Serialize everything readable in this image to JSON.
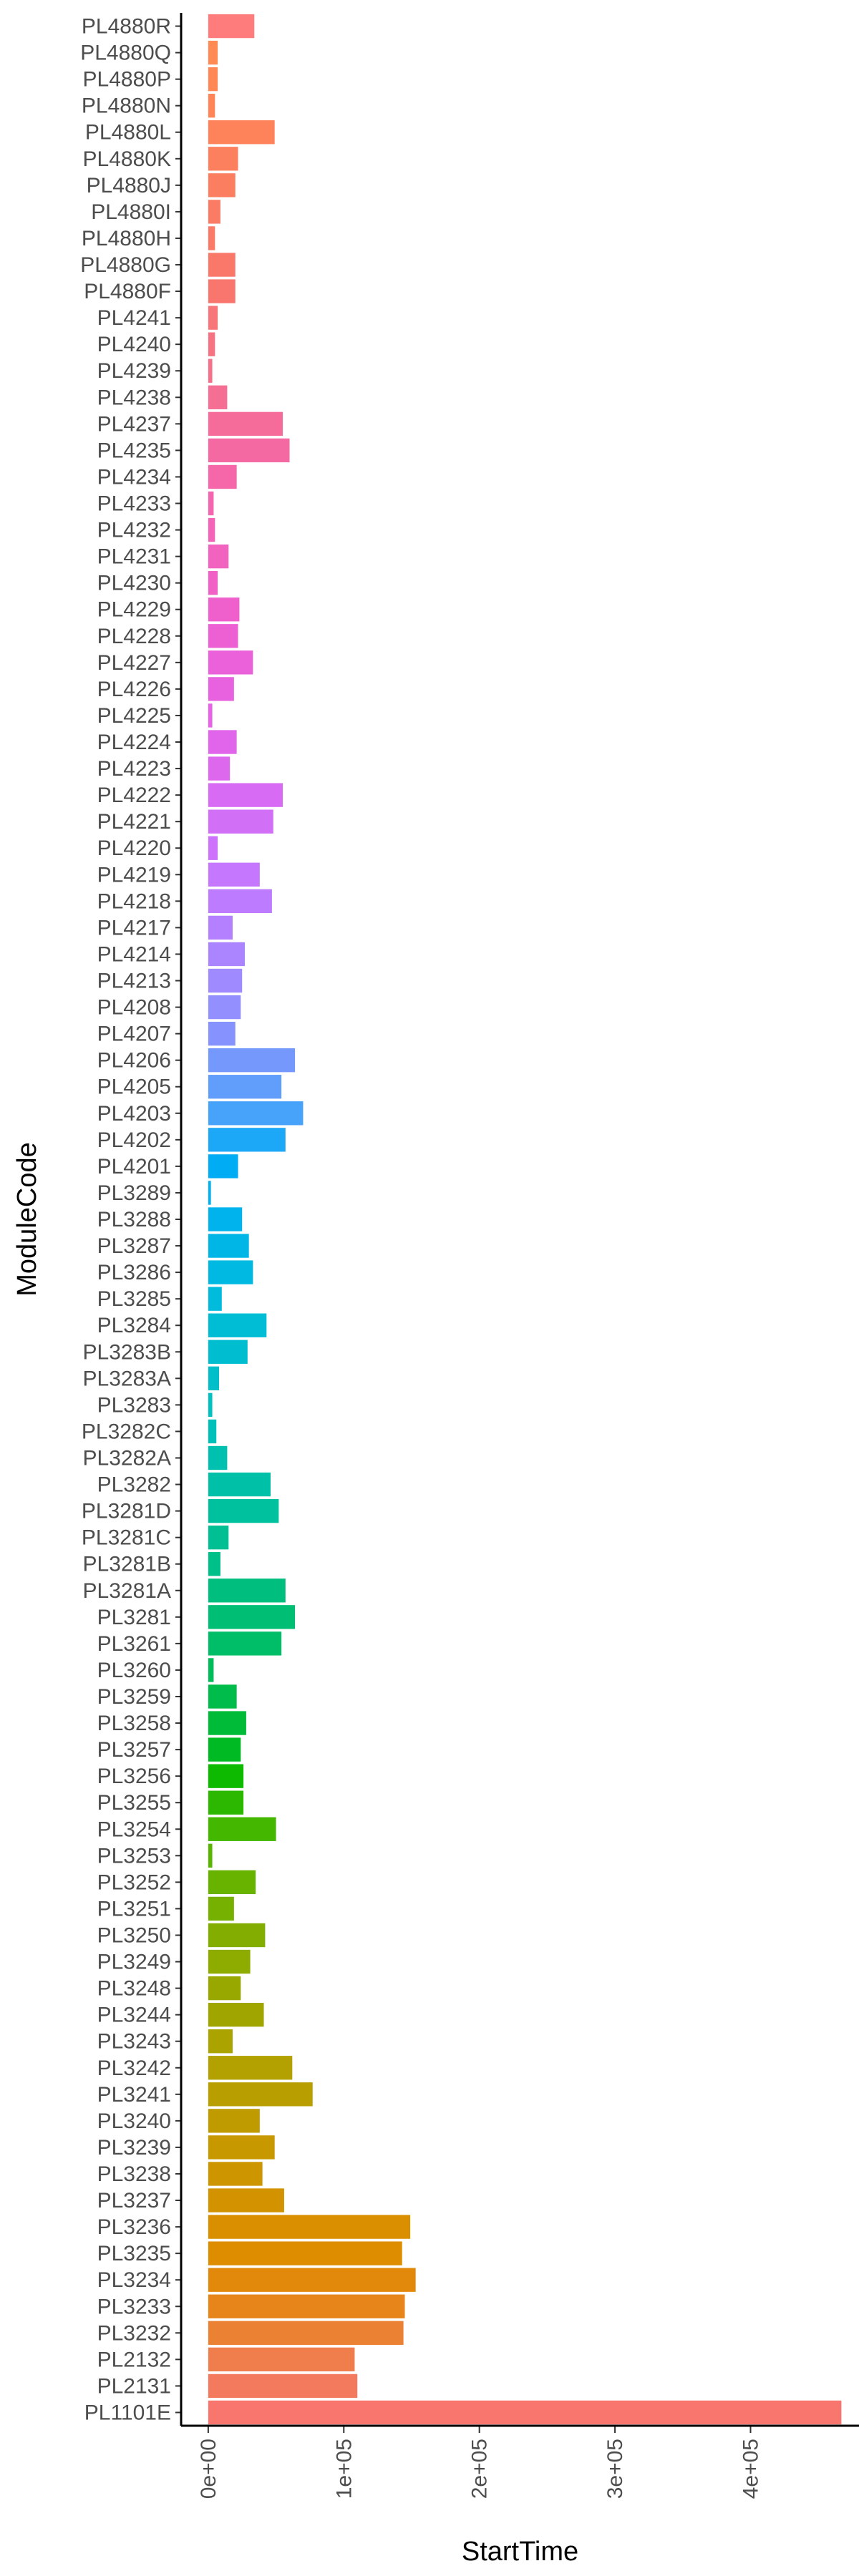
{
  "chart_data": {
    "type": "bar",
    "orientation": "horizontal",
    "xlabel": "StartTime",
    "ylabel": "ModuleCode",
    "xlim": [
      -20000,
      480000
    ],
    "x_ticks": [
      0,
      100000,
      200000,
      300000,
      400000
    ],
    "x_tick_labels": [
      "0e+00",
      "1e+05",
      "2e+05",
      "3e+05",
      "4e+05"
    ],
    "grid": false,
    "legend": "none",
    "categories": [
      "PL1101E",
      "PL2131",
      "PL2132",
      "PL3232",
      "PL3233",
      "PL3234",
      "PL3235",
      "PL3236",
      "PL3237",
      "PL3238",
      "PL3239",
      "PL3240",
      "PL3241",
      "PL3242",
      "PL3243",
      "PL3244",
      "PL3248",
      "PL3249",
      "PL3250",
      "PL3251",
      "PL3252",
      "PL3253",
      "PL3254",
      "PL3255",
      "PL3256",
      "PL3257",
      "PL3258",
      "PL3259",
      "PL3260",
      "PL3261",
      "PL3281",
      "PL3281A",
      "PL3281B",
      "PL3281C",
      "PL3281D",
      "PL3282",
      "PL3282A",
      "PL3282C",
      "PL3283",
      "PL3283A",
      "PL3283B",
      "PL3284",
      "PL3285",
      "PL3286",
      "PL3287",
      "PL3288",
      "PL3289",
      "PL4201",
      "PL4202",
      "PL4203",
      "PL4205",
      "PL4206",
      "PL4207",
      "PL4208",
      "PL4213",
      "PL4214",
      "PL4217",
      "PL4218",
      "PL4219",
      "PL4220",
      "PL4221",
      "PL4222",
      "PL4223",
      "PL4224",
      "PL4225",
      "PL4226",
      "PL4227",
      "PL4228",
      "PL4229",
      "PL4230",
      "PL4231",
      "PL4232",
      "PL4233",
      "PL4234",
      "PL4235",
      "PL4237",
      "PL4238",
      "PL4239",
      "PL4240",
      "PL4241",
      "PL4880F",
      "PL4880G",
      "PL4880H",
      "PL4880I",
      "PL4880J",
      "PL4880K",
      "PL4880L",
      "PL4880N",
      "PL4880P",
      "PL4880Q",
      "PL4880R"
    ],
    "values": [
      467000,
      110000,
      108000,
      144000,
      145000,
      153000,
      143000,
      149000,
      56000,
      40000,
      49000,
      38000,
      77000,
      62000,
      18000,
      41000,
      24000,
      31000,
      42000,
      19000,
      35000,
      3000,
      50000,
      26000,
      26000,
      24000,
      28000,
      21000,
      4000,
      54000,
      64000,
      57000,
      9000,
      15000,
      52000,
      46000,
      14000,
      6000,
      3000,
      8000,
      29000,
      43000,
      10000,
      33000,
      30000,
      25000,
      2000,
      22000,
      57000,
      70000,
      54000,
      64000,
      20000,
      24000,
      25000,
      27000,
      18000,
      47000,
      38000,
      7000,
      48000,
      55000,
      16000,
      21000,
      3000,
      19000,
      33000,
      22000,
      23000,
      7000,
      15000,
      5000,
      4000,
      21000,
      60000,
      55000,
      14000,
      3000,
      5000,
      7000,
      20000,
      20000,
      5000,
      9000,
      20000,
      22000,
      49000,
      5000,
      7000,
      7000,
      34000
    ],
    "colors": [
      "#F8766D",
      "#F47A5D",
      "#F07D4C",
      "#EB8233",
      "#E7851A",
      "#E2880A",
      "#DE8C00",
      "#D98F00",
      "#D39200",
      "#CD9600",
      "#C79800",
      "#C09B00",
      "#B99E00",
      "#B2A100",
      "#AAA300",
      "#A1A500",
      "#98A800",
      "#8EAB00",
      "#83AD00",
      "#76B000",
      "#68B300",
      "#58B500",
      "#44B700",
      "#2CB800",
      "#0DBA00",
      "#00BA23",
      "#00BB38",
      "#00BC4A",
      "#00BD59",
      "#00BE67",
      "#00BE73",
      "#00BF7E",
      "#00C089",
      "#00C093",
      "#00C19D",
      "#00C1A7",
      "#00C1B0",
      "#00C1B9",
      "#00C0C1",
      "#00BFC8",
      "#00BECF",
      "#00BDD6",
      "#00BBDC",
      "#00B9E2",
      "#00B6E7",
      "#00B3EC",
      "#00B0F0",
      "#00ACF4",
      "#1DA8F7",
      "#47A3F9",
      "#619DFB",
      "#7598FC",
      "#8693FE",
      "#948FFF",
      "#A08AFF",
      "#AB85FF",
      "#B480FF",
      "#BD7CFF",
      "#C577FD",
      "#CC72FB",
      "#D26FF7",
      "#D86BF3",
      "#DD68EE",
      "#E165EA",
      "#E563E4",
      "#E862DF",
      "#EB61D9",
      "#ED60D3",
      "#EF60CC",
      "#F161C5",
      "#F262BF",
      "#F363B7",
      "#F465B0",
      "#F567A9",
      "#F569A2",
      "#F56C9A",
      "#F56E93",
      "#F5718B",
      "#F67383",
      "#F7767A",
      "#F8766D",
      "#F9786A",
      "#FA7A67",
      "#FB7C64",
      "#FC7E61",
      "#FD805E",
      "#FE835B",
      "#FF8558",
      "#FF8856",
      "#FF8A53",
      "#FF7C7C"
    ]
  }
}
